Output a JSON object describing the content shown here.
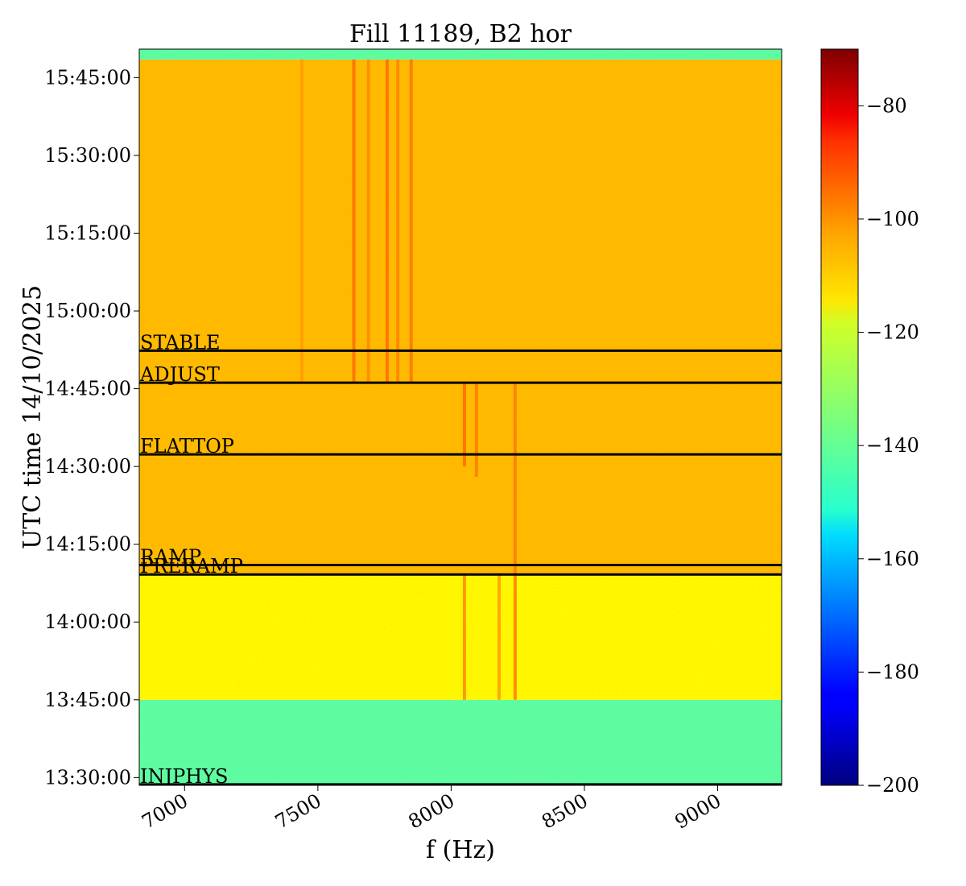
{
  "chart_data": {
    "type": "heatmap",
    "title": "Fill 11189, B2 hor",
    "xlabel": "f (Hz)",
    "ylabel": "UTC time 14/10/2025",
    "xlim": [
      6830,
      9240
    ],
    "ylim": [
      "13:28:30",
      "15:50:30"
    ],
    "x_ticks": [
      {
        "value": 7000,
        "label": "7000"
      },
      {
        "value": 7500,
        "label": "7500"
      },
      {
        "value": 8000,
        "label": "8000"
      },
      {
        "value": 8500,
        "label": "8500"
      },
      {
        "value": 9000,
        "label": "9000"
      }
    ],
    "y_ticks": [
      {
        "value": "13:30:00",
        "label": "13:30:00"
      },
      {
        "value": "13:45:00",
        "label": "13:45:00"
      },
      {
        "value": "14:00:00",
        "label": "14:00:00"
      },
      {
        "value": "14:15:00",
        "label": "14:15:00"
      },
      {
        "value": "14:30:00",
        "label": "14:30:00"
      },
      {
        "value": "14:45:00",
        "label": "14:45:00"
      },
      {
        "value": "15:00:00",
        "label": "15:00:00"
      },
      {
        "value": "15:15:00",
        "label": "15:15:00"
      },
      {
        "value": "15:30:00",
        "label": "15:30:00"
      },
      {
        "value": "15:45:00",
        "label": "15:45:00"
      }
    ],
    "colorbar": {
      "colormap": "jet",
      "range": [
        -200,
        -70
      ],
      "ticks": [
        {
          "value": -80,
          "label": "−80"
        },
        {
          "value": -100,
          "label": "−100"
        },
        {
          "value": -120,
          "label": "−120"
        },
        {
          "value": -140,
          "label": "−140"
        },
        {
          "value": -160,
          "label": "−160"
        },
        {
          "value": -180,
          "label": "−180"
        },
        {
          "value": -200,
          "label": "−200"
        }
      ]
    },
    "background_levels": [
      {
        "from": "13:28:30",
        "to": "13:45:00",
        "level": -140
      },
      {
        "from": "13:45:00",
        "to": "14:09:00",
        "level": -118
      },
      {
        "from": "14:09:00",
        "to": "15:48:30",
        "level": -110
      },
      {
        "from": "15:48:30",
        "to": "15:50:30",
        "level": -140
      }
    ],
    "beam_modes": [
      {
        "label": "INJPHYS",
        "time": "13:28:40"
      },
      {
        "label": "PRERAMP",
        "time": "14:09:10"
      },
      {
        "label": "RAMP",
        "time": "14:11:00"
      },
      {
        "label": "FLATTOP",
        "time": "14:32:20"
      },
      {
        "label": "ADJUST",
        "time": "14:46:10"
      },
      {
        "label": "STABLE",
        "time": "14:52:20"
      }
    ],
    "spectral_lines": [
      {
        "freq": 7440,
        "from": "14:46:10",
        "to": "15:48:30",
        "level": -106
      },
      {
        "freq": 7635,
        "from": "14:46:10",
        "to": "15:48:30",
        "level": -100
      },
      {
        "freq": 7690,
        "from": "14:46:10",
        "to": "15:48:30",
        "level": -104
      },
      {
        "freq": 7760,
        "from": "14:46:10",
        "to": "15:48:30",
        "level": -100
      },
      {
        "freq": 7800,
        "from": "14:46:10",
        "to": "15:48:30",
        "level": -103
      },
      {
        "freq": 7850,
        "from": "14:46:10",
        "to": "15:48:30",
        "level": -101
      },
      {
        "freq": 8050,
        "from": "14:30:00",
        "to": "14:46:10",
        "level": -100
      },
      {
        "freq": 8095,
        "from": "14:28:00",
        "to": "14:46:10",
        "level": -102
      },
      {
        "freq": 8240,
        "from": "13:45:00",
        "to": "14:46:10",
        "level": -102
      },
      {
        "freq": 8180,
        "from": "13:45:00",
        "to": "14:09:00",
        "level": -106
      },
      {
        "freq": 8050,
        "from": "13:45:00",
        "to": "14:09:00",
        "level": -104
      }
    ]
  }
}
